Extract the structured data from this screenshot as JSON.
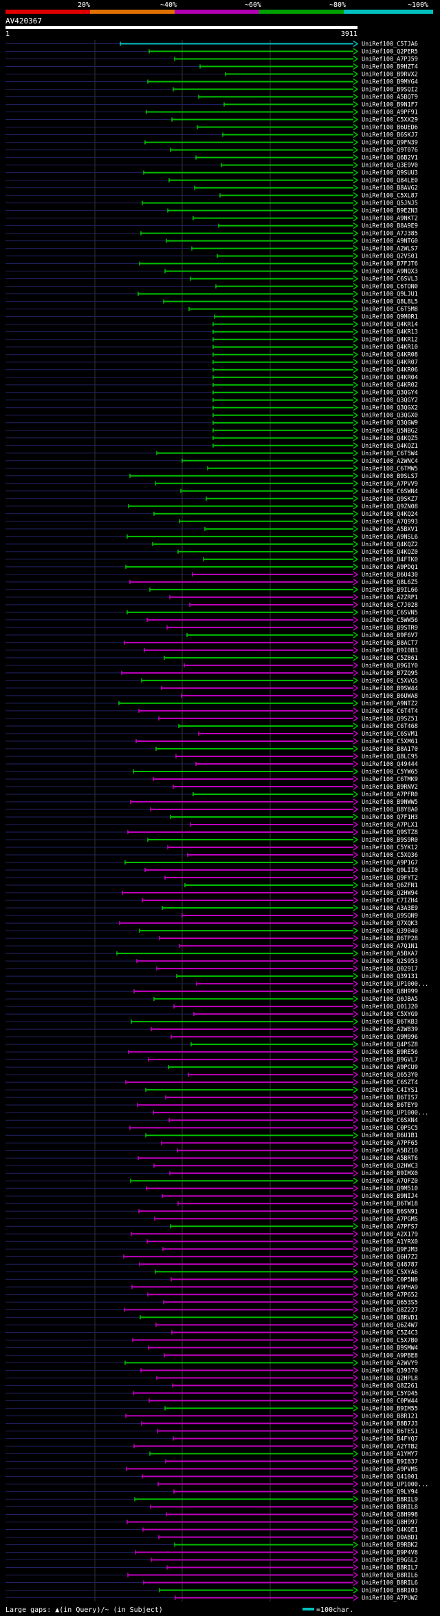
{
  "query_id": "AV420367",
  "query_start": "1",
  "query_end": "3911",
  "legend": {
    "pct_labels": [
      "20%",
      "~40%",
      "~60%",
      "~80%",
      "~100%"
    ],
    "pct_colors": [
      "#e00000",
      "#e07000",
      "#b000b0",
      "#00a000",
      "#00c0c0"
    ],
    "footer_gaps": "Large gaps: ▲(in Query)/~ (in Subject)",
    "footer_scale": "=100char."
  },
  "chart_data": {
    "type": "alignment",
    "title": "AV420367",
    "x_range": [
      1,
      3911
    ],
    "subjects": [
      "UniRef100_C5TJA6",
      "UniRef100_Q2PER5",
      "UniRef100_A7PJ59",
      "UniRef100_B9HZT4",
      "UniRef100_B9RVX2",
      "UniRef100_B9MYG4",
      "UniRef100_B9SQI2",
      "UniRef100_A5BQT9",
      "UniRef100_B9N1F7",
      "UniRef100_A9PF91",
      "UniRef100_C5XX29",
      "UniRef100_B6UED6",
      "UniRef100_B6SKJ7",
      "UniRef100_Q9FN39",
      "UniRef100_Q9T076",
      "UniRef100_Q6B2V1",
      "UniRef100_Q3E9V0",
      "UniRef100_Q9SUU3",
      "UniRef100_Q84LE0",
      "UniRef100_B8AVG2",
      "UniRef100_C5XL87",
      "UniRef100_Q5JNJ5",
      "UniRef100_B9EZN3",
      "UniRef100_A9NKT2",
      "UniRef100_B8A9E9",
      "UniRef100_A7J385",
      "UniRef100_A9NTG0",
      "UniRef100_A2WLS7",
      "UniRef100_Q2VS01",
      "UniRef100_B7FJT6",
      "UniRef100_A9NQX3",
      "UniRef100_C6SVL3",
      "UniRef100_C6TON0",
      "UniRef100_Q9LJU1",
      "UniRef100_Q8L8L5",
      "UniRef100_C6T5M8",
      "UniRef100_Q9M0R1",
      "UniRef100_Q4KR14",
      "UniRef100_Q4KR13",
      "UniRef100_Q4KR12",
      "UniRef100_Q4KR10",
      "UniRef100_Q4KR08",
      "UniRef100_Q4KR07",
      "UniRef100_Q4KR06",
      "UniRef100_Q4KR04",
      "UniRef100_Q4KR02",
      "UniRef100_Q3QGY4",
      "UniRef100_Q3QGY2",
      "UniRef100_Q3QGX2",
      "UniRef100_Q3QGX0",
      "UniRef100_Q3QGW9",
      "UniRef100_Q5NBG2",
      "UniRef100_Q4KQZ5",
      "UniRef100_Q4KQZ1",
      "UniRef100_C6T5W4",
      "UniRef100_A2WNC4",
      "UniRef100_C6TMW5",
      "UniRef100_B9SLS7",
      "UniRef100_A7PVV9",
      "UniRef100_C6SWN4",
      "UniRef100_Q9SKZ7",
      "UniRef100_Q9ZN08",
      "UniRef100_Q4KQ24",
      "UniRef100_A7Q993",
      "UniRef100_A5BXV1",
      "UniRef100_A9NSL6",
      "UniRef100_Q4KQZ2",
      "UniRef100_Q4KQZ0",
      "UniRef100_B4FTK0",
      "UniRef100_A9PDQ1",
      "UniRef100_B6U430",
      "UniRef100_Q8L6Z5",
      "UniRef100_B9IL66",
      "UniRef100_A2ZRP1",
      "UniRef100_C7J028",
      "UniRef100_C6SVN5",
      "UniRef100_C5WW56",
      "UniRef100_B9STR9",
      "UniRef100_B9F6V7",
      "UniRef100_B8ACT7",
      "UniRef100_B9I0B3",
      "UniRef100_C5Z861",
      "UniRef100_B9GIY0",
      "UniRef100_B7ZQ95",
      "UniRef100_C5XVG5",
      "UniRef100_B9SW44",
      "UniRef100_B6UWA8",
      "UniRef100_A9NTZ2",
      "UniRef100_C6T4T4",
      "UniRef100_Q9SZ51",
      "UniRef100_C6T468",
      "UniRef100_C6SVM1",
      "UniRef100_C5XM61",
      "UniRef100_B8A170",
      "UniRef100_Q8LC95",
      "UniRef100_Q49444",
      "UniRef100_C5YW65",
      "UniRef100_C6TMK9",
      "UniRef100_B9RNV2",
      "UniRef100_A7PFR0",
      "UniRef100_B9NWW5",
      "UniRef100_B8Y8A0",
      "UniRef100_Q7F1H3",
      "UniRef100_A7PLX1",
      "UniRef100_Q9STZ8",
      "UniRef100_B9S9R0",
      "UniRef100_C5YK12",
      "UniRef100_C5XQ36",
      "UniRef100_A9P1G7",
      "UniRef100_Q9LII0",
      "UniRef100_Q9FYT2",
      "UniRef100_Q6ZFN1",
      "UniRef100_Q2HW94",
      "UniRef100_C7IZH4",
      "UniRef100_A3A3E9",
      "UniRef100_Q9SQN9",
      "UniRef100_Q7XQK3",
      "UniRef100_Q39040",
      "UniRef100_B6TP28",
      "UniRef100_A7Q1N1",
      "UniRef100_A5BXA7",
      "UniRef100_Q2S953",
      "UniRef100_Q02917",
      "UniRef100_Q39131",
      "UniRef100_UP1000...",
      "UniRef100_Q8H999",
      "UniRef100_Q0JBA5",
      "UniRef100_Q01J20",
      "UniRef100_C5XYG9",
      "UniRef100_B6TKB3",
      "UniRef100_A2W839",
      "UniRef100_Q9M996",
      "UniRef100_Q4PSZ8",
      "UniRef100_B9RE56",
      "UniRef100_B9GVL7",
      "UniRef100_A9PCU9",
      "UniRef100_Q653Y0",
      "UniRef100_C6SZT4",
      "UniRef100_C4IYS1",
      "UniRef100_B6TIS7",
      "UniRef100_B6TEY9",
      "UniRef100_UP1000...",
      "UniRef100_C6SXN4",
      "UniRef100_C0PSC5",
      "UniRef100_B6U1B1",
      "UniRef100_A7PF65",
      "UniRef100_A5BZ10",
      "UniRef100_A5BRT6",
      "UniRef100_Q2HWC3",
      "UniRef100_B9IMX0",
      "UniRef100_A7QFZ0",
      "UniRef100_Q9M510",
      "UniRef100_B9NIJ4",
      "UniRef100_B6TW18",
      "UniRef100_B6SN91",
      "UniRef100_A7PGM5",
      "UniRef100_A7PFS7",
      "UniRef100_A2X179",
      "UniRef100_A1YRX0",
      "UniRef100_Q9FJM3",
      "UniRef100_Q6H7Z2",
      "UniRef100_Q48787",
      "UniRef100_C5XYA6",
      "UniRef100_C0P5N0",
      "UniRef100_A9PHA9",
      "UniRef100_A7P652",
      "UniRef100_Q653S5",
      "UniRef100_Q8Z227",
      "UniRef100_Q8RVD1",
      "UniRef100_Q6Z4W7",
      "UniRef100_C5Z4C3",
      "UniRef100_C5X7B0",
      "UniRef100_B9SMW4",
      "UniRef100_A9PBE8",
      "UniRef100_A2WVY9",
      "UniRef100_Q39370",
      "UniRef100_Q2HPL8",
      "UniRef100_Q8Z261",
      "UniRef100_C5YD45",
      "UniRef100_C0PW44",
      "UniRef100_B9IM55",
      "UniRef100_B8R121",
      "UniRef100_B8B7J3",
      "UniRef100_B6TES1",
      "UniRef100_B4FYQ7",
      "UniRef100_A2YTB2",
      "UniRef100_A1YMY7",
      "UniRef100_B9I837",
      "UniRef100_A9PVM5",
      "UniRef100_Q41001",
      "UniRef100_UP1000...",
      "UniRef100_Q9LY94",
      "UniRef100_B8RIL9",
      "UniRef100_B8RIL8",
      "UniRef100_Q8H998",
      "UniRef100_Q8H997",
      "UniRef100_Q4KQE1",
      "UniRef100_D0ABD1",
      "UniRef100_B9RBK2",
      "UniRef100_B9P4V8",
      "UniRef100_B9GGL2",
      "UniRef100_B8RIL7",
      "UniRef100_B8RIL6",
      "UniRef100_B8RIL6",
      "UniRef100_B8RI03",
      "UniRef100_A7PUW2"
    ]
  }
}
